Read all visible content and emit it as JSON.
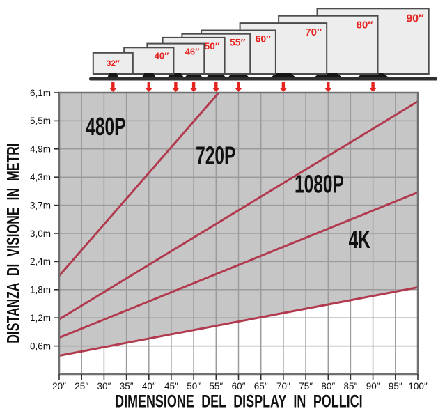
{
  "colors": {
    "series_line": "#b23a4e",
    "arrow_red": "#e5231e",
    "tv_label_red": "#e5231e",
    "tv_fill": "#ededed",
    "tv_border": "#4c4c4c",
    "shelf_dark": "#2f2f2f",
    "plot_shaded_bg": "#c6c6c6",
    "plot_unshaded_bg": "#ffffff",
    "gridline": "#9b9b9b",
    "plot_border": "#707070",
    "text_black": "#101010"
  },
  "tv_row": {
    "tvs": [
      {
        "size": 32,
        "label": "32″",
        "label_placement": "center"
      },
      {
        "size": 40,
        "label": "40″",
        "label_placement": "top-right"
      },
      {
        "size": 46,
        "label": "46″",
        "label_placement": "top-right"
      },
      {
        "size": 50,
        "label": "50″",
        "label_placement": "top-right"
      },
      {
        "size": 55,
        "label": "55″",
        "label_placement": "top-right"
      },
      {
        "size": 60,
        "label": "60″",
        "label_placement": "top-right"
      },
      {
        "size": 70,
        "label": "70″",
        "label_placement": "top-right"
      },
      {
        "size": 80,
        "label": "80″",
        "label_placement": "top-right"
      },
      {
        "size": 90,
        "label": "90″",
        "label_placement": "top-right"
      }
    ]
  },
  "chart_data": {
    "type": "line",
    "title": "",
    "xlabel": "DIMENSIONE DEL DISPLAY IN POLLICI",
    "ylabel": "DISTANZA DI VISIONE IN METRI",
    "xlim": [
      20,
      100
    ],
    "ylim": [
      0,
      6.1
    ],
    "grid": true,
    "x_ticks": [
      {
        "value": 20,
        "label": "20″"
      },
      {
        "value": 25,
        "label": "25″"
      },
      {
        "value": 30,
        "label": "30″"
      },
      {
        "value": 35,
        "label": "35″"
      },
      {
        "value": 40,
        "label": "40″"
      },
      {
        "value": 45,
        "label": "45″"
      },
      {
        "value": 50,
        "label": "50″"
      },
      {
        "value": 55,
        "label": "55″"
      },
      {
        "value": 60,
        "label": "60″"
      },
      {
        "value": 65,
        "label": "65″"
      },
      {
        "value": 70,
        "label": "70″"
      },
      {
        "value": 75,
        "label": "75″"
      },
      {
        "value": 80,
        "label": "80″"
      },
      {
        "value": 85,
        "label": "85″"
      },
      {
        "value": 90,
        "label": "90″"
      },
      {
        "value": 95,
        "label": "95″"
      },
      {
        "value": 100,
        "label": "100″"
      }
    ],
    "y_ticks": [
      {
        "value": 0.61,
        "label": "0,6m"
      },
      {
        "value": 1.22,
        "label": "1,2m"
      },
      {
        "value": 1.83,
        "label": "1,8m"
      },
      {
        "value": 2.44,
        "label": "2,4m"
      },
      {
        "value": 3.05,
        "label": "3,0m"
      },
      {
        "value": 3.66,
        "label": "3,7m"
      },
      {
        "value": 4.27,
        "label": "4,3m"
      },
      {
        "value": 4.88,
        "label": "4,9m"
      },
      {
        "value": 5.49,
        "label": "5,5m"
      },
      {
        "value": 6.1,
        "label": "6,1m"
      }
    ],
    "series": [
      {
        "name": "480P",
        "points": [
          [
            20,
            2.13
          ],
          [
            55.6,
            6.1
          ]
        ],
        "label": {
          "text": "480P",
          "x": 30.4,
          "y": 5.18
        }
      },
      {
        "name": "720P",
        "points": [
          [
            20,
            1.19
          ],
          [
            100,
            5.91
          ]
        ],
        "label": {
          "text": "720P",
          "x": 54.9,
          "y": 4.55
        }
      },
      {
        "name": "1080P",
        "points": [
          [
            20,
            0.79
          ],
          [
            100,
            3.94
          ]
        ],
        "label": {
          "text": "1080P",
          "x": 78.0,
          "y": 3.93
        }
      },
      {
        "name": "4K",
        "points": [
          [
            20,
            0.4
          ],
          [
            100,
            1.88
          ]
        ],
        "label": {
          "text": "4K",
          "x": 87.0,
          "y": 2.73
        }
      }
    ],
    "shading": {
      "description": "area above the 4K line is shaded gray; area below the 4K line is white",
      "above_color": "#c6c6c6",
      "below_color": "#ffffff"
    },
    "annotations": "red arrows point from each TV illustration down to its diagonal size on the x-axis"
  }
}
